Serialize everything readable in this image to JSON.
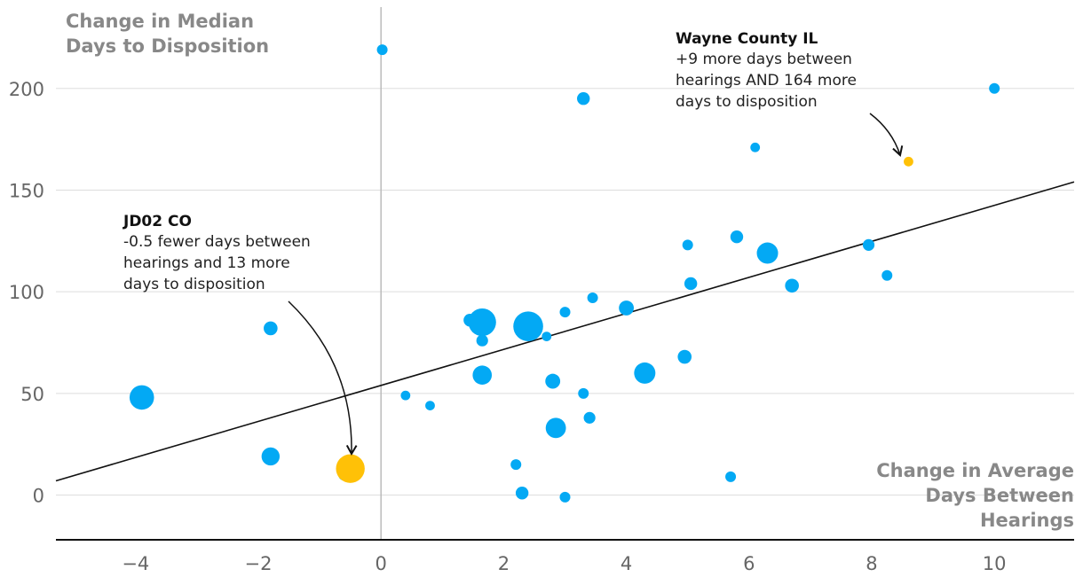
{
  "chart_data": {
    "type": "scatter",
    "title": "",
    "ylabel_lines": [
      "Change in Median",
      "Days to Disposition"
    ],
    "xlabel_lines": [
      "Change in Average",
      "Days Between",
      "Hearings"
    ],
    "xlim": [
      -5.3,
      11.3
    ],
    "ylim": [
      -22,
      240
    ],
    "xticks": [
      -4,
      -2,
      0,
      2,
      4,
      6,
      8,
      10
    ],
    "xtick_labels": [
      "−4",
      "−2",
      "0",
      "2",
      "4",
      "6",
      "8",
      "10"
    ],
    "yticks": [
      0,
      50,
      100,
      150,
      200
    ],
    "ytick_labels": [
      "0",
      "50",
      "100",
      "150",
      "200"
    ],
    "grid": "horizontal",
    "colors": {
      "point": "#03a9f4",
      "highlight": "#ffc107",
      "trend": "#111111",
      "grid": "#dddddd",
      "zero_line": "#bbbbbb"
    },
    "trendline": {
      "x": [
        -5.3,
        11.3
      ],
      "y": [
        7,
        154
      ]
    },
    "points": [
      {
        "x": 0.02,
        "y": 219,
        "size": 1
      },
      {
        "x": 3.3,
        "y": 195,
        "size": 1.2
      },
      {
        "x": 10,
        "y": 200,
        "size": 1
      },
      {
        "x": 6.1,
        "y": 171,
        "size": 0.9
      },
      {
        "x": 5.8,
        "y": 127,
        "size": 1.2
      },
      {
        "x": 5.0,
        "y": 123,
        "size": 1
      },
      {
        "x": 6.3,
        "y": 119,
        "size": 2
      },
      {
        "x": 7.95,
        "y": 123,
        "size": 1.1
      },
      {
        "x": 8.25,
        "y": 108,
        "size": 1
      },
      {
        "x": 6.7,
        "y": 103,
        "size": 1.3
      },
      {
        "x": 5.05,
        "y": 104,
        "size": 1.2
      },
      {
        "x": 3.45,
        "y": 97,
        "size": 1
      },
      {
        "x": 4.0,
        "y": 92,
        "size": 1.4
      },
      {
        "x": 3.0,
        "y": 90,
        "size": 1
      },
      {
        "x": 1.45,
        "y": 86,
        "size": 1.2
      },
      {
        "x": 1.65,
        "y": 85,
        "size": 2.6
      },
      {
        "x": 2.4,
        "y": 83,
        "size": 2.8
      },
      {
        "x": 2.7,
        "y": 78,
        "size": 0.9
      },
      {
        "x": 1.65,
        "y": 76,
        "size": 1.1
      },
      {
        "x": 4.95,
        "y": 68,
        "size": 1.3
      },
      {
        "x": 4.3,
        "y": 60,
        "size": 2
      },
      {
        "x": 1.65,
        "y": 59,
        "size": 1.8
      },
      {
        "x": 2.8,
        "y": 56,
        "size": 1.4
      },
      {
        "x": 3.3,
        "y": 50,
        "size": 1
      },
      {
        "x": 0.4,
        "y": 49,
        "size": 0.9
      },
      {
        "x": 0.8,
        "y": 44,
        "size": 0.9
      },
      {
        "x": 3.4,
        "y": 38,
        "size": 1.1
      },
      {
        "x": 2.85,
        "y": 33,
        "size": 1.9
      },
      {
        "x": -3.9,
        "y": 48,
        "size": 2.3
      },
      {
        "x": -1.8,
        "y": 82,
        "size": 1.3
      },
      {
        "x": -1.8,
        "y": 19,
        "size": 1.7
      },
      {
        "x": -0.6,
        "y": 10,
        "size": 1.1
      },
      {
        "x": 2.2,
        "y": 15,
        "size": 1
      },
      {
        "x": 5.7,
        "y": 9,
        "size": 1
      },
      {
        "x": 2.3,
        "y": 1,
        "size": 1.2
      },
      {
        "x": 3.0,
        "y": -1,
        "size": 1
      }
    ],
    "highlights": [
      {
        "name": "Wayne County IL",
        "x": 8.6,
        "y": 164,
        "size": 0.9
      },
      {
        "name": "JD02 CO",
        "x": -0.5,
        "y": 13,
        "size": 2.7
      }
    ],
    "annotations": [
      {
        "title": "Wayne County IL",
        "lines": [
          "+9 more days between",
          "hearings AND 164 more",
          "days to disposition"
        ]
      },
      {
        "title": "JD02 CO",
        "lines": [
          "-0.5 fewer days between",
          "hearings and 13 more",
          "days to disposition"
        ]
      }
    ]
  }
}
